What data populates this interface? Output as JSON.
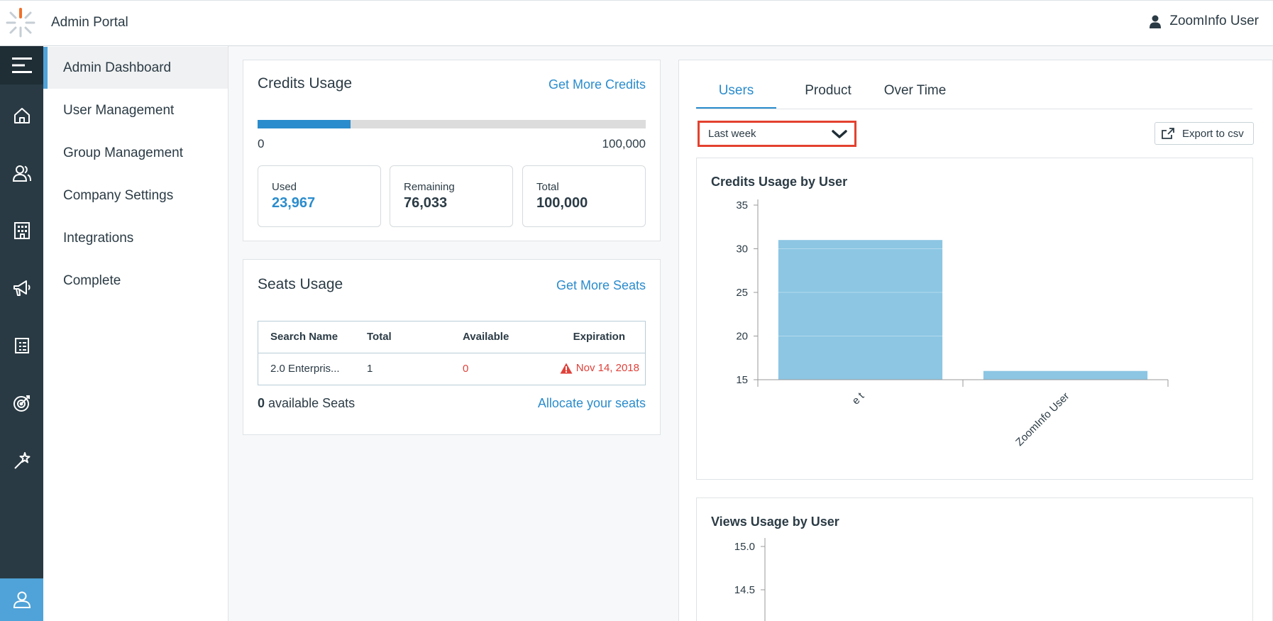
{
  "header": {
    "app_title": "Admin Portal",
    "user_name": "ZoomInfo User"
  },
  "rail": {
    "icons": [
      "menu-icon",
      "home-icon",
      "contacts-icon",
      "company-icon",
      "megaphone-icon",
      "list-icon",
      "target-icon",
      "magic-wand-icon",
      "admin-user-icon"
    ]
  },
  "sidebar": {
    "items": [
      {
        "label": "Admin Dashboard"
      },
      {
        "label": "User Management"
      },
      {
        "label": "Group Management"
      },
      {
        "label": "Company Settings"
      },
      {
        "label": "Integrations"
      },
      {
        "label": "Complete"
      }
    ],
    "active_index": 0
  },
  "credits": {
    "title": "Credits Usage",
    "link": "Get More Credits",
    "progress": 0.24,
    "scale_min": "0",
    "scale_max": "100,000",
    "stats": [
      {
        "label": "Used",
        "value": "23,967"
      },
      {
        "label": "Remaining",
        "value": "76,033"
      },
      {
        "label": "Total",
        "value": "100,000"
      }
    ]
  },
  "seats": {
    "title": "Seats Usage",
    "link": "Get More Seats",
    "columns": [
      "Search Name",
      "Total",
      "Available",
      "Expiration"
    ],
    "rows": [
      {
        "name": "2.0 Enterpris...",
        "total": "1",
        "available": "0",
        "expiration": "Nov 14, 2018"
      }
    ],
    "footer_count": "0",
    "footer_text": "available Seats",
    "footer_link": "Allocate your seats"
  },
  "usage_panel": {
    "tabs": [
      "Users",
      "Product",
      "Over Time"
    ],
    "active_tab": 0,
    "period_select": "Last week",
    "export_label": "Export to csv"
  },
  "chart_data": [
    {
      "type": "bar",
      "title": "Credits Usage by User",
      "categories": [
        "e t",
        "ZoomInfo User"
      ],
      "values": [
        31,
        16
      ],
      "ylim": [
        15,
        35
      ],
      "yticks": [
        15,
        20,
        25,
        30,
        35
      ],
      "color": "#8cc6e3"
    },
    {
      "type": "bar",
      "title": "Views Usage by User",
      "categories": [],
      "values": [],
      "yticks": [
        "15.0",
        "14.5"
      ]
    }
  ]
}
